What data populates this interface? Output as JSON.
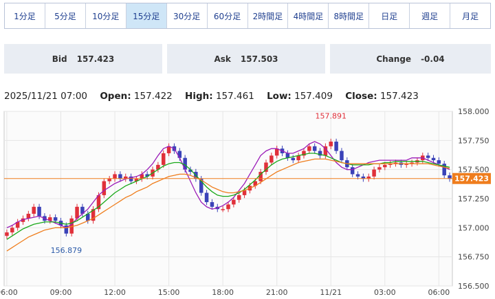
{
  "timeframe_tabs": [
    {
      "label": "1分足",
      "active": false
    },
    {
      "label": "5分足",
      "active": false
    },
    {
      "label": "10分足",
      "active": false
    },
    {
      "label": "15分足",
      "active": true
    },
    {
      "label": "30分足",
      "active": false
    },
    {
      "label": "60分足",
      "active": false
    },
    {
      "label": "2時間足",
      "active": false
    },
    {
      "label": "4時間足",
      "active": false
    },
    {
      "label": "8時間足",
      "active": false
    },
    {
      "label": "日足",
      "active": false
    },
    {
      "label": "週足",
      "active": false
    },
    {
      "label": "月足",
      "active": false
    }
  ],
  "quote": {
    "bid_label": "Bid",
    "bid_value": "157.423",
    "ask_label": "Ask",
    "ask_value": "157.503",
    "change_label": "Change",
    "change_value": "-0.04"
  },
  "ohlc": {
    "datetime": "2025/11/21 07:00",
    "open_label": "Open:",
    "open_value": "157.422",
    "high_label": "High:",
    "high_value": "157.461",
    "low_label": "Low:",
    "low_value": "157.409",
    "close_label": "Close:",
    "close_value": "157.423"
  },
  "colors": {
    "up": "#e0303a",
    "down": "#3a42b8",
    "ma_short": "#9b1bb8",
    "ma_mid": "#18a818",
    "ma_long": "#ef7d1d",
    "price_line": "#ef7d1d"
  },
  "chart_data": {
    "type": "candlestick",
    "ylim": [
      156.5,
      158.0
    ],
    "yticks": [
      "158.000",
      "157.750",
      "157.500",
      "157.250",
      "157.000",
      "156.750",
      "156.500"
    ],
    "xticks": [
      {
        "label": "06:00",
        "i": 0
      },
      {
        "label": "09:00",
        "i": 10
      },
      {
        "label": "12:00",
        "i": 20
      },
      {
        "label": "15:00",
        "i": 30
      },
      {
        "label": "18:00",
        "i": 40
      },
      {
        "label": "21:00",
        "i": 50
      },
      {
        "label": "11/21",
        "i": 60
      },
      {
        "label": "03:00",
        "i": 70
      },
      {
        "label": "06:00",
        "i": 80
      }
    ],
    "current_price": "157.423",
    "annotations": [
      {
        "text": "157.891",
        "i": 60,
        "price": 157.891,
        "position": "above"
      },
      {
        "text": "156.879",
        "i": 11,
        "price": 156.879,
        "position": "below"
      }
    ],
    "close": [
      156.96,
      157.0,
      157.05,
      157.08,
      157.12,
      157.18,
      157.1,
      157.06,
      157.09,
      157.06,
      157.02,
      156.95,
      157.08,
      157.18,
      157.12,
      157.06,
      157.16,
      157.28,
      157.4,
      157.42,
      157.46,
      157.42,
      157.44,
      157.4,
      157.42,
      157.46,
      157.44,
      157.5,
      157.54,
      157.64,
      157.7,
      157.66,
      157.6,
      157.5,
      157.48,
      157.42,
      157.3,
      157.22,
      157.18,
      157.16,
      157.16,
      157.2,
      157.24,
      157.28,
      157.32,
      157.36,
      157.4,
      157.48,
      157.56,
      157.62,
      157.68,
      157.64,
      157.6,
      157.58,
      157.62,
      157.66,
      157.7,
      157.66,
      157.62,
      157.7,
      157.74,
      157.66,
      157.58,
      157.52,
      157.46,
      157.44,
      157.42,
      157.44,
      157.5,
      157.52,
      157.54,
      157.55,
      157.56,
      157.54,
      157.55,
      157.56,
      157.58,
      157.62,
      157.6,
      157.58,
      157.55,
      157.45,
      157.42
    ],
    "series": [
      {
        "name": "MA short",
        "values": [
          157.0,
          157.02,
          157.05,
          157.07,
          157.08,
          157.09,
          157.1,
          157.08,
          157.06,
          157.04,
          157.02,
          157.0,
          157.03,
          157.08,
          157.12,
          157.16,
          157.22,
          157.28,
          157.32,
          157.35,
          157.38,
          157.4,
          157.42,
          157.43,
          157.44,
          157.46,
          157.5,
          157.55,
          157.62,
          157.68,
          157.7,
          157.68,
          157.6,
          157.5,
          157.4,
          157.3,
          157.22,
          157.18,
          157.16,
          157.17,
          157.19,
          157.22,
          157.26,
          157.32,
          157.38,
          157.46,
          157.54,
          157.62,
          157.66,
          157.68,
          157.68,
          157.66,
          157.64,
          157.64,
          157.66,
          157.68,
          157.72,
          157.74,
          157.72,
          157.68,
          157.62,
          157.56,
          157.52,
          157.5,
          157.5,
          157.52,
          157.54,
          157.56,
          157.57,
          157.58,
          157.58,
          157.58,
          157.58,
          157.58,
          157.58,
          157.6,
          157.6,
          157.6,
          157.58,
          157.56,
          157.54,
          157.52,
          157.5
        ]
      },
      {
        "name": "MA mid",
        "values": [
          156.9,
          156.93,
          156.96,
          156.99,
          157.01,
          157.03,
          157.04,
          157.05,
          157.05,
          157.05,
          157.04,
          157.03,
          157.04,
          157.06,
          157.09,
          157.12,
          157.15,
          157.18,
          157.22,
          157.26,
          157.3,
          157.33,
          157.36,
          157.38,
          157.4,
          157.42,
          157.44,
          157.47,
          157.5,
          157.53,
          157.55,
          157.56,
          157.56,
          157.54,
          157.5,
          157.45,
          157.4,
          157.35,
          157.31,
          157.28,
          157.27,
          157.27,
          157.28,
          157.3,
          157.33,
          157.37,
          157.41,
          157.46,
          157.5,
          157.54,
          157.57,
          157.59,
          157.6,
          157.61,
          157.62,
          157.63,
          157.64,
          157.64,
          157.63,
          157.62,
          157.6,
          157.58,
          157.56,
          157.55,
          157.54,
          157.54,
          157.54,
          157.54,
          157.55,
          157.55,
          157.56,
          157.56,
          157.57,
          157.57,
          157.57,
          157.57,
          157.57,
          157.57,
          157.56,
          157.55,
          157.54,
          157.53,
          157.52
        ]
      },
      {
        "name": "MA long",
        "values": [
          156.8,
          156.83,
          156.86,
          156.89,
          156.92,
          156.94,
          156.96,
          156.98,
          156.99,
          157.0,
          157.0,
          157.0,
          157.01,
          157.02,
          157.04,
          157.06,
          157.08,
          157.11,
          157.14,
          157.17,
          157.2,
          157.23,
          157.26,
          157.28,
          157.31,
          157.33,
          157.35,
          157.38,
          157.4,
          157.42,
          157.44,
          157.45,
          157.46,
          157.46,
          157.45,
          157.43,
          157.41,
          157.38,
          157.35,
          157.33,
          157.31,
          157.3,
          157.3,
          157.31,
          157.32,
          157.34,
          157.36,
          157.39,
          157.42,
          157.45,
          157.48,
          157.5,
          157.52,
          157.54,
          157.56,
          157.57,
          157.58,
          157.59,
          157.59,
          157.59,
          157.58,
          157.57,
          157.56,
          157.55,
          157.55,
          157.55,
          157.55,
          157.55,
          157.55,
          157.55,
          157.55,
          157.55,
          157.55,
          157.55,
          157.55,
          157.55,
          157.55,
          157.55,
          157.55,
          157.54,
          157.53,
          157.52,
          157.51
        ]
      }
    ]
  }
}
